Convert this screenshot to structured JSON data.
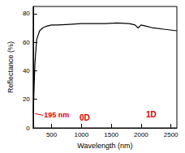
{
  "chart_data": {
    "type": "line",
    "x_label": "Wavelength (nm)",
    "y_label": "Reflectance (%)",
    "x": [
      195,
      200,
      220,
      250,
      300,
      350,
      400,
      500,
      600,
      800,
      1000,
      1200,
      1400,
      1600,
      1800,
      1900,
      1950,
      2000,
      2100,
      2200,
      2400,
      2600
    ],
    "values": [
      10,
      20,
      45,
      62,
      68,
      70,
      71,
      72,
      72,
      72.5,
      73,
      73,
      73,
      73.5,
      73,
      72,
      70,
      72,
      71,
      70,
      69,
      68
    ],
    "color": "#000000",
    "xlim": [
      190,
      2600
    ],
    "xticks": [
      500,
      1000,
      1500,
      2000,
      2500
    ],
    "ylim": [
      0,
      85
    ],
    "yticks": [
      0,
      20,
      40,
      60,
      80
    ],
    "grid": false,
    "annotations": [
      "195 nm",
      "0D",
      "1D"
    ],
    "annotation_color": "#e00000"
  }
}
